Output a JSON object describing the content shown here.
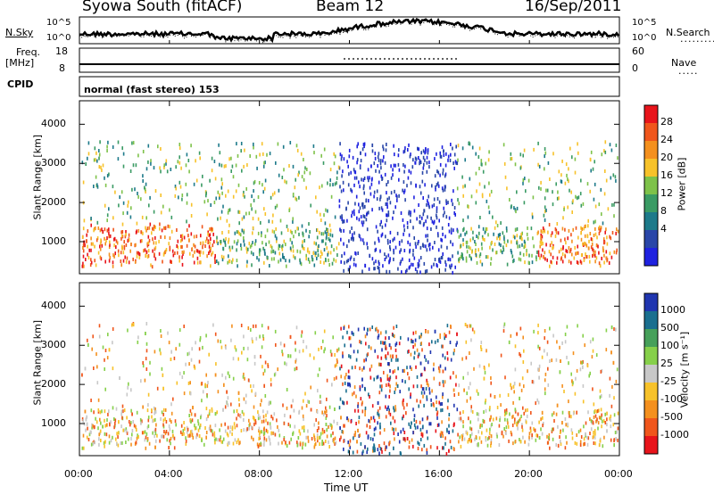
{
  "header": {
    "station": "Syowa South (fitACF)",
    "beam": "Beam 12",
    "date": "16/Sep/2011"
  },
  "top_panels": {
    "nsky_label": "N.Sky",
    "nsearch_label": "N.Search",
    "noise_ticks_left": [
      "10^5",
      "10^0"
    ],
    "noise_ticks_right": [
      "10^5",
      "10^0"
    ],
    "freq_label": "Freq.",
    "freq_unit": "[MHz]",
    "freq_ticks": [
      "18",
      "8"
    ],
    "nave_label": "Nave",
    "nave_ticks": [
      "60",
      "0"
    ],
    "cpid_label": "CPID",
    "cpid_text": "normal (fast stereo) 153"
  },
  "chart_data": [
    {
      "type": "heatmap",
      "name": "power",
      "ylabel": "Slant Range [km]",
      "ylim": [
        180,
        4600
      ],
      "yticks": [
        1000,
        2000,
        3000,
        4000
      ],
      "colorbar_label": "Power [dB]",
      "colorbar_ticks": [
        "28",
        "24",
        "20",
        "16",
        "12",
        "8",
        "4"
      ],
      "colorbar_colors": [
        "#e8141b",
        "#f0561c",
        "#f4901e",
        "#f7c22a",
        "#7ec24a",
        "#3a9b64",
        "#1d7a8a",
        "#2946a8",
        "#1f22e0"
      ]
    },
    {
      "type": "heatmap",
      "name": "velocity",
      "xlabel": "Time UT",
      "ylabel": "Slant Range [km]",
      "ylim": [
        180,
        4600
      ],
      "yticks": [
        1000,
        2000,
        3000,
        4000
      ],
      "xticks": [
        "00:00",
        "04:00",
        "08:00",
        "12:00",
        "16:00",
        "20:00",
        "00:00"
      ],
      "colorbar_label": "Velocity [m s⁻¹]",
      "colorbar_ticks": [
        "1000",
        "500",
        "100",
        "25",
        "-25",
        "-100",
        "-500",
        "-1000"
      ],
      "colorbar_colors": [
        "#2036b0",
        "#1a6f8f",
        "#46a05a",
        "#86d04a",
        "#c8c8c8",
        "#f7c22a",
        "#f4901e",
        "#f0561c",
        "#e8141b"
      ]
    }
  ]
}
